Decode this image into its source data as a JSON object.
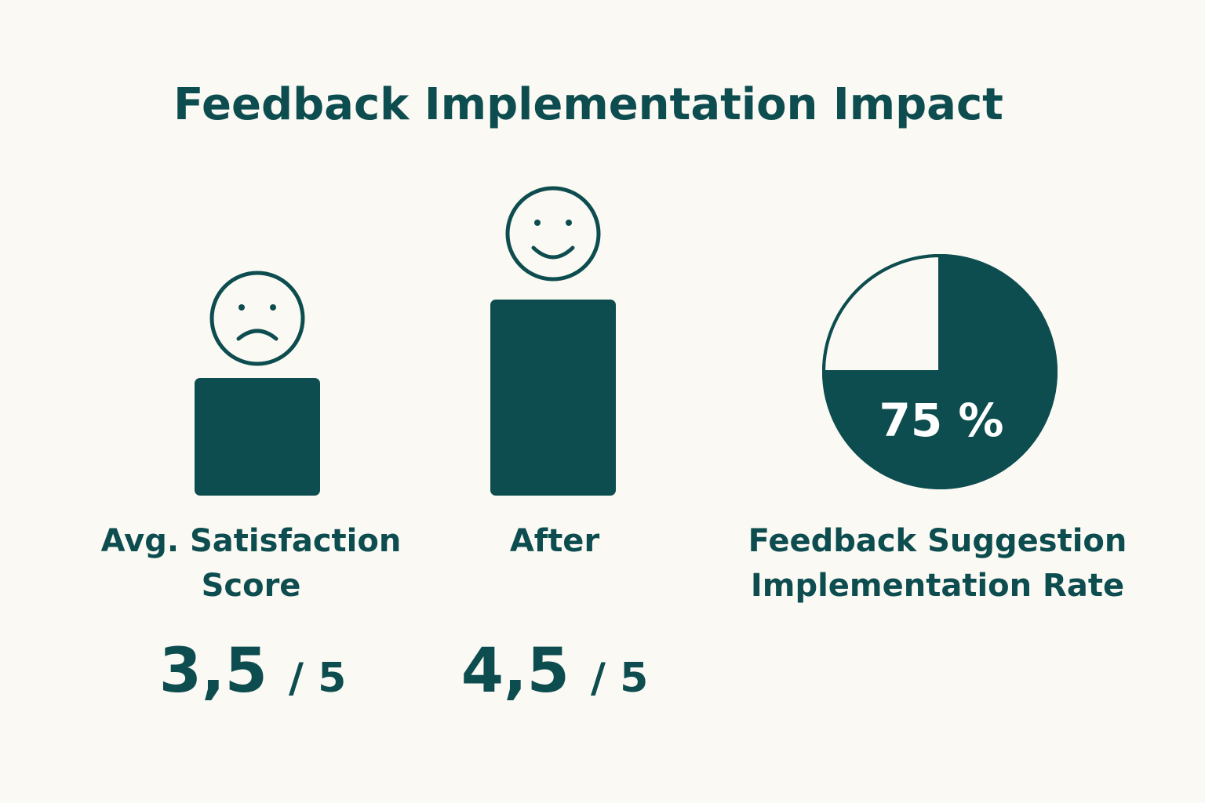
{
  "title": "Feedback Implementation Impact",
  "chart_data": [
    {
      "type": "bar",
      "categories": [
        "Avg. Satisfaction Score",
        "After"
      ],
      "values": [
        3.5,
        4.5
      ],
      "value_labels": [
        "3,5 / 5",
        "4,5 / 5"
      ],
      "color": "#0d4d4f",
      "ylim": [
        2,
        5
      ]
    },
    {
      "type": "pie",
      "title": "Feedback Suggestion Implementation Rate",
      "values": [
        75,
        25
      ],
      "value_labels": [
        "75 %",
        null
      ],
      "colors": [
        "#0d4d4f",
        "#fbf9f3"
      ]
    }
  ]
}
